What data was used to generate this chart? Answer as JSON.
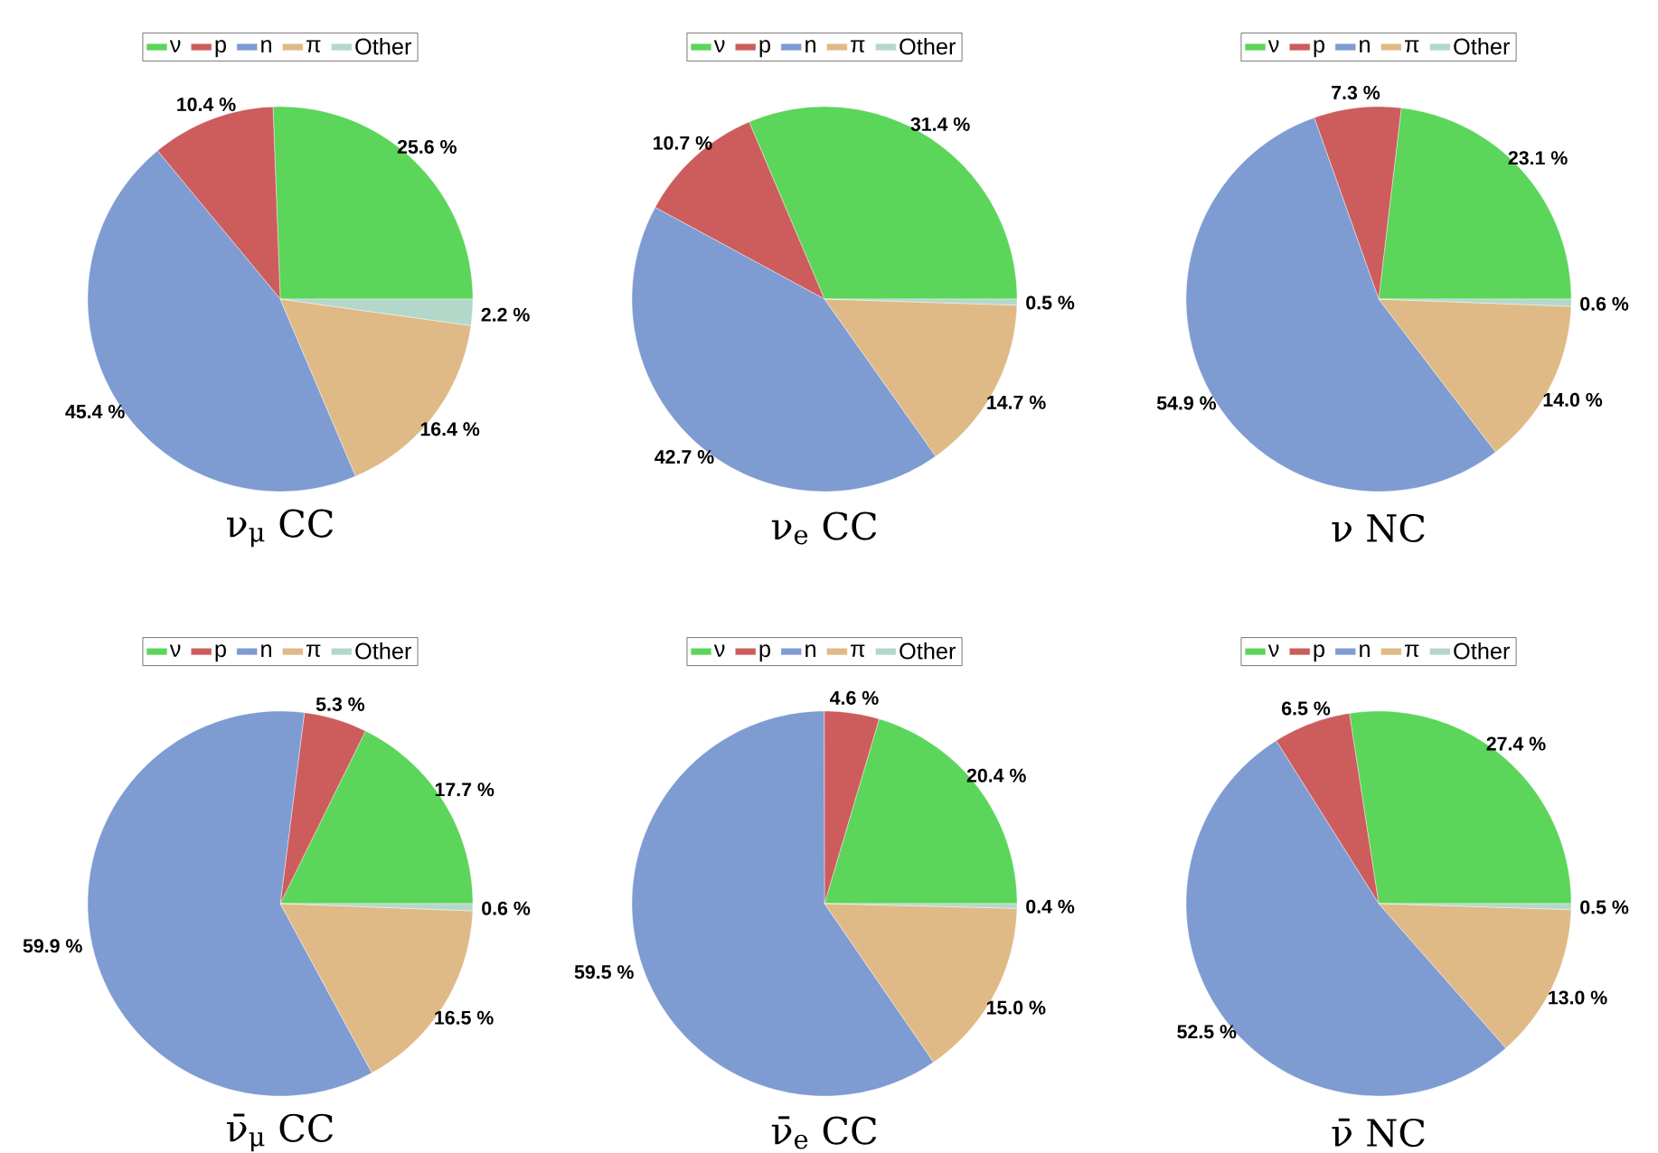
{
  "chart_data": [
    {
      "type": "pie",
      "title": "ν$_{μ}$ CC",
      "categories": [
        "ν",
        "p",
        "n",
        "π",
        "Other"
      ],
      "values": [
        25.6,
        10.4,
        45.4,
        16.4,
        2.2
      ],
      "value_labels": [
        "25.6 %",
        "10.4 %",
        "45.4 %",
        "16.4 %",
        "2.2 %"
      ],
      "colors": [
        "#5bd55a",
        "#cd5c5c",
        "#7e9bd2",
        "#dfba87",
        "#b3d8c9"
      ],
      "legend": "top"
    },
    {
      "type": "pie",
      "title": "ν$_{e}$ CC",
      "categories": [
        "ν",
        "p",
        "n",
        "π",
        "Other"
      ],
      "values": [
        31.4,
        10.7,
        42.7,
        14.7,
        0.5
      ],
      "value_labels": [
        "31.4 %",
        "10.7 %",
        "42.7 %",
        "14.7 %",
        "0.5 %"
      ],
      "colors": [
        "#5bd55a",
        "#cd5c5c",
        "#7e9bd2",
        "#dfba87",
        "#b3d8c9"
      ],
      "legend": "top"
    },
    {
      "type": "pie",
      "title": "ν NC",
      "categories": [
        "ν",
        "p",
        "n",
        "π",
        "Other"
      ],
      "values": [
        23.1,
        7.3,
        54.9,
        14.0,
        0.6
      ],
      "value_labels": [
        "23.1 %",
        "7.3 %",
        "54.9 %",
        "14.0 %",
        "0.6 %"
      ],
      "colors": [
        "#5bd55a",
        "#cd5c5c",
        "#7e9bd2",
        "#dfba87",
        "#b3d8c9"
      ],
      "legend": "top"
    },
    {
      "type": "pie",
      "title": "ν̄$_{μ}$ CC",
      "categories": [
        "ν",
        "p",
        "n",
        "π",
        "Other"
      ],
      "values": [
        17.7,
        5.3,
        59.9,
        16.5,
        0.6
      ],
      "value_labels": [
        "17.7 %",
        "5.3 %",
        "59.9 %",
        "16.5 %",
        "0.6 %"
      ],
      "colors": [
        "#5bd55a",
        "#cd5c5c",
        "#7e9bd2",
        "#dfba87",
        "#b3d8c9"
      ],
      "legend": "top"
    },
    {
      "type": "pie",
      "title": "ν̄$_{e}$ CC",
      "categories": [
        "ν",
        "p",
        "n",
        "π",
        "Other"
      ],
      "values": [
        20.4,
        4.6,
        59.5,
        15.0,
        0.4
      ],
      "value_labels": [
        "20.4 %",
        "4.6 %",
        "59.5 %",
        "15.0 %",
        "0.4 %"
      ],
      "colors": [
        "#5bd55a",
        "#cd5c5c",
        "#7e9bd2",
        "#dfba87",
        "#b3d8c9"
      ],
      "legend": "top"
    },
    {
      "type": "pie",
      "title": "ν̄ NC",
      "categories": [
        "ν",
        "p",
        "n",
        "π",
        "Other"
      ],
      "values": [
        27.4,
        6.5,
        52.5,
        13.0,
        0.5
      ],
      "value_labels": [
        "27.4 %",
        "6.5 %",
        "52.5 %",
        "13.0 %",
        "0.5 %"
      ],
      "colors": [
        "#5bd55a",
        "#cd5c5c",
        "#7e9bd2",
        "#dfba87",
        "#b3d8c9"
      ],
      "legend": "top"
    }
  ]
}
